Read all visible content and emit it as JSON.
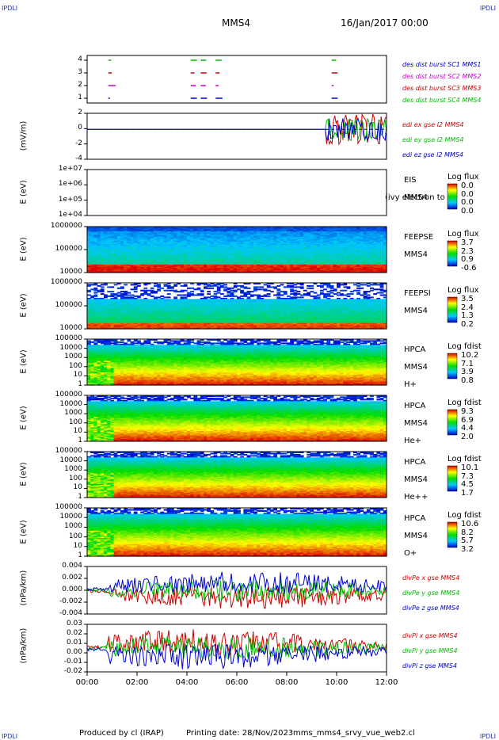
{
  "header": {
    "corner_tl": "IPDLI",
    "corner_tr": "IPDLI",
    "corner_bl": "IPDLI",
    "corner_br": "IPDLI",
    "spacecraft": "MMS4",
    "date": "16/Jan/2017 00:00"
  },
  "footer": {
    "produced": "Produced by cl (IRAP)",
    "printing": "Printing date: 28/Nov/2023",
    "file": "mms_mms4_srvy_vue_web2.cl"
  },
  "time_axis": {
    "ticks": [
      "00:00",
      "02:00",
      "04:00",
      "06:00",
      "08:00",
      "10:00",
      "12:00"
    ]
  },
  "chart_data": [
    {
      "id": "p1",
      "type": "scatter",
      "ylabel": "",
      "yticks": [
        "4",
        "3",
        "2",
        "1"
      ],
      "series": [
        {
          "name": "des dist burst SC1 MMS1",
          "color": "#0000cc"
        },
        {
          "name": "des dist burst SC2 MMS2",
          "color": "#cc00cc"
        },
        {
          "name": "des dist burst SC3 MMS3",
          "color": "#cc0000"
        },
        {
          "name": "des dist burst SC4 MMS4",
          "color": "#00bb00"
        }
      ],
      "burst_times_hours": [
        0.85,
        4.15,
        4.55,
        5.15,
        9.8
      ]
    },
    {
      "id": "p2",
      "type": "line",
      "ylabel": "(mV/m)",
      "yticks": [
        "2",
        "0",
        "-2",
        "-4"
      ],
      "series": [
        {
          "name": "edi ex gse l2 MMS4",
          "color": "#cc0000"
        },
        {
          "name": "edi ey gse l2 MMS4",
          "color": "#00bb00"
        },
        {
          "name": "edi ez gse l2 MMS4",
          "color": "#0000cc"
        }
      ]
    },
    {
      "id": "p3",
      "type": "heatmap",
      "ylabel": "E (eV)",
      "yticks": [
        "1e+07",
        "1e+06",
        "1e+05",
        "1e+04"
      ],
      "labels": [
        "EIS",
        "MMS4"
      ],
      "overflow_text": "(ivy electron to",
      "colorbar": {
        "title": "Log flux",
        "values": [
          "0.0",
          "0.0",
          "0.0",
          "0.0"
        ]
      }
    },
    {
      "id": "p4",
      "type": "heatmap",
      "ylabel": "E (eV)",
      "yticks": [
        "1000000",
        "100000",
        "10000"
      ],
      "labels": [
        "FEEPSE",
        "MMS4"
      ],
      "colorbar": {
        "title": "Log flux",
        "values": [
          "3.7",
          "2.3",
          "0.9",
          "-0.6"
        ]
      }
    },
    {
      "id": "p5",
      "type": "heatmap",
      "ylabel": "E (eV)",
      "yticks": [
        "1000000",
        "100000",
        "10000"
      ],
      "labels": [
        "FEEPSI",
        "MMS4"
      ],
      "colorbar": {
        "title": "Log flux",
        "values": [
          "3.5",
          "2.4",
          "1.3",
          "0.2"
        ]
      }
    },
    {
      "id": "p6",
      "type": "heatmap",
      "ylabel": "E (eV)",
      "yticks": [
        "100000",
        "10000",
        "1000",
        "100",
        "10",
        "1"
      ],
      "labels": [
        "HPCA",
        "MMS4",
        "H+"
      ],
      "colorbar": {
        "title": "Log fdist",
        "values": [
          "10.2",
          "7.1",
          "3.9",
          "0.8"
        ]
      }
    },
    {
      "id": "p7",
      "type": "heatmap",
      "ylabel": "E (eV)",
      "yticks": [
        "100000",
        "10000",
        "1000",
        "100",
        "10",
        "1"
      ],
      "labels": [
        "HPCA",
        "MMS4",
        "He+"
      ],
      "colorbar": {
        "title": "Log fdist",
        "values": [
          "9.3",
          "6.9",
          "4.4",
          "2.0"
        ]
      }
    },
    {
      "id": "p8",
      "type": "heatmap",
      "ylabel": "E (eV)",
      "yticks": [
        "100000",
        "10000",
        "1000",
        "100",
        "10",
        "1"
      ],
      "labels": [
        "HPCA",
        "MMS4",
        "He++"
      ],
      "colorbar": {
        "title": "Log fdist",
        "values": [
          "10.1",
          "7.3",
          "4.5",
          "1.7"
        ]
      }
    },
    {
      "id": "p9",
      "type": "heatmap",
      "ylabel": "E (eV)",
      "yticks": [
        "100000",
        "10000",
        "1000",
        "100",
        "10",
        "1"
      ],
      "labels": [
        "HPCA",
        "MMS4",
        "O+"
      ],
      "colorbar": {
        "title": "Log fdist",
        "values": [
          "10.6",
          "8.2",
          "5.7",
          "3.2"
        ]
      }
    },
    {
      "id": "p10",
      "type": "line",
      "ylabel": "(nPa/km)",
      "yticks": [
        "0.004",
        "0.002",
        "0.000",
        "-0.002",
        "-0.004"
      ],
      "series": [
        {
          "name": "divPe x gse MMS4",
          "color": "#cc0000"
        },
        {
          "name": "divPe y gse MMS4",
          "color": "#00bb00"
        },
        {
          "name": "divPe z gse MMS4",
          "color": "#0000cc"
        }
      ]
    },
    {
      "id": "p11",
      "type": "line",
      "ylabel": "(nPa/km)",
      "yticks": [
        "0.03",
        "0.02",
        "0.01",
        "0.00",
        "-0.01",
        "-0.02"
      ],
      "series": [
        {
          "name": "divPi x gse MMS4",
          "color": "#cc0000"
        },
        {
          "name": "divPi y gse MMS4",
          "color": "#00bb00"
        },
        {
          "name": "divPi z gse MMS4",
          "color": "#0000cc"
        }
      ]
    }
  ]
}
